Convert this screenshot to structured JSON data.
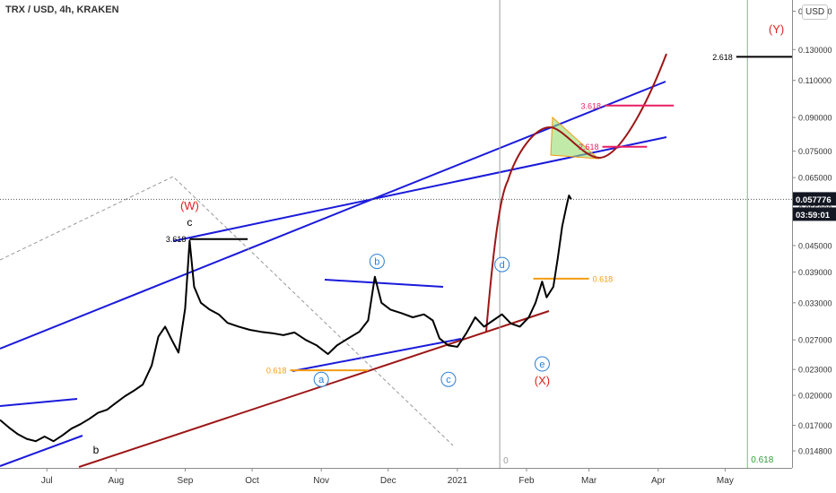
{
  "header": {
    "title": "TRX / USD, 4h, KRAKEN",
    "currency_button": "USD"
  },
  "colors": {
    "channel": "#1a1adb",
    "support": "#9c1616",
    "projection": "#9c1616",
    "wave_red": "#e02020",
    "fib_orange": "#f39c12",
    "fib_pink": "#e91e63",
    "fib_green": "#2e9e3a",
    "circle_label": "#2a7fd4",
    "price_tag": "#131722"
  },
  "chart_data": {
    "type": "line",
    "title": "TRX / USD, 4h, KRAKEN",
    "xlabel": "",
    "ylabel": "",
    "xlim": [
      "2020-06-10",
      "2021-05-31"
    ],
    "ylim": [
      0.0135,
      0.17
    ],
    "log_scale": true,
    "x_tick_labels": [
      {
        "date": "2020-07-01",
        "label": "Jul"
      },
      {
        "date": "2020-08-01",
        "label": "Aug"
      },
      {
        "date": "2020-09-01",
        "label": "Sep"
      },
      {
        "date": "2020-10-01",
        "label": "Oct"
      },
      {
        "date": "2020-11-01",
        "label": "Nov"
      },
      {
        "date": "2020-12-01",
        "label": "Dec"
      },
      {
        "date": "2021-01-01",
        "label": "2021"
      },
      {
        "date": "2021-02-01",
        "label": "Feb"
      },
      {
        "date": "2021-03-01",
        "label": "Mar"
      },
      {
        "date": "2021-04-01",
        "label": "Apr"
      },
      {
        "date": "2021-05-01",
        "label": "May"
      }
    ],
    "y_tick_labels": [
      "0.014800",
      "0.017000",
      "0.020000",
      "0.023000",
      "0.027000",
      "0.033000",
      "0.039000",
      "0.045000",
      "0.055000",
      "0.065000",
      "0.075000",
      "0.090000",
      "0.110000",
      "0.130000",
      "0.160000"
    ],
    "last_price": "0.057776",
    "countdown": "03:59:01",
    "series": [
      {
        "values": [
          [
            "2020-06-10",
            0.0175
          ],
          [
            "2020-06-14",
            0.0168
          ],
          [
            "2020-06-18",
            0.0162
          ],
          [
            "2020-06-22",
            0.0158
          ],
          [
            "2020-06-26",
            0.0156
          ],
          [
            "2020-06-30",
            0.016
          ],
          [
            "2020-07-04",
            0.0156
          ],
          [
            "2020-07-08",
            0.0161
          ],
          [
            "2020-07-12",
            0.0167
          ],
          [
            "2020-07-16",
            0.0171
          ],
          [
            "2020-07-20",
            0.0176
          ],
          [
            "2020-07-24",
            0.0182
          ],
          [
            "2020-07-28",
            0.0185
          ],
          [
            "2020-08-01",
            0.0192
          ],
          [
            "2020-08-05",
            0.0199
          ],
          [
            "2020-08-09",
            0.0205
          ],
          [
            "2020-08-13",
            0.0212
          ],
          [
            "2020-08-17",
            0.0235
          ],
          [
            "2020-08-20",
            0.0275
          ],
          [
            "2020-08-23",
            0.029
          ],
          [
            "2020-08-26",
            0.027
          ],
          [
            "2020-08-29",
            0.0252
          ],
          [
            "2020-09-01",
            0.032
          ],
          [
            "2020-09-03",
            0.0462
          ],
          [
            "2020-09-05",
            0.036
          ],
          [
            "2020-09-08",
            0.033
          ],
          [
            "2020-09-12",
            0.0318
          ],
          [
            "2020-09-16",
            0.031
          ],
          [
            "2020-09-20",
            0.0296
          ],
          [
            "2020-09-25",
            0.029
          ],
          [
            "2020-09-30",
            0.0285
          ],
          [
            "2020-10-05",
            0.0282
          ],
          [
            "2020-10-10",
            0.028
          ],
          [
            "2020-10-15",
            0.0277
          ],
          [
            "2020-10-20",
            0.0281
          ],
          [
            "2020-10-25",
            0.027
          ],
          [
            "2020-10-30",
            0.0262
          ],
          [
            "2020-11-04",
            0.025
          ],
          [
            "2020-11-08",
            0.0262
          ],
          [
            "2020-11-13",
            0.0272
          ],
          [
            "2020-11-18",
            0.0282
          ],
          [
            "2020-11-22",
            0.03
          ],
          [
            "2020-11-25",
            0.038
          ],
          [
            "2020-11-28",
            0.033
          ],
          [
            "2020-12-02",
            0.0318
          ],
          [
            "2020-12-07",
            0.0312
          ],
          [
            "2020-12-12",
            0.0305
          ],
          [
            "2020-12-17",
            0.031
          ],
          [
            "2020-12-21",
            0.03
          ],
          [
            "2020-12-24",
            0.0272
          ],
          [
            "2020-12-28",
            0.0262
          ],
          [
            "2021-01-01",
            0.026
          ],
          [
            "2021-01-05",
            0.028
          ],
          [
            "2021-01-09",
            0.0305
          ],
          [
            "2021-01-13",
            0.029
          ],
          [
            "2021-01-17",
            0.03
          ],
          [
            "2021-01-21",
            0.031
          ],
          [
            "2021-01-25",
            0.0295
          ],
          [
            "2021-01-29",
            0.029
          ],
          [
            "2021-02-02",
            0.0305
          ],
          [
            "2021-02-05",
            0.033
          ],
          [
            "2021-02-08",
            0.037
          ],
          [
            "2021-02-10",
            0.034
          ],
          [
            "2021-02-13",
            0.036
          ],
          [
            "2021-02-15",
            0.042
          ],
          [
            "2021-02-17",
            0.05
          ],
          [
            "2021-02-19",
            0.056
          ],
          [
            "2021-02-20",
            0.059
          ],
          [
            "2021-02-21",
            0.0578
          ]
        ]
      }
    ],
    "annotations": {
      "waves_red": [
        {
          "label": "(W)",
          "date": "2020-09-03",
          "price": 0.0546
        },
        {
          "label": "(X)",
          "date": "2021-02-08",
          "price": 0.0212
        },
        {
          "label": "(Y)",
          "date": "2021-05-24",
          "price": 0.142
        }
      ],
      "waves_black": [
        {
          "label": "c",
          "date": "2020-09-03",
          "price": 0.05
        },
        {
          "label": "b",
          "date": "2020-07-23",
          "price": 0.0146
        }
      ],
      "waves_circled": [
        {
          "label": "a",
          "date": "2020-11-01",
          "price": 0.0218
        },
        {
          "label": "b",
          "date": "2020-11-26",
          "price": 0.0413
        },
        {
          "label": "c",
          "date": "2020-12-28",
          "price": 0.0218
        },
        {
          "label": "d",
          "date": "2021-01-21",
          "price": 0.0406
        },
        {
          "label": "e",
          "date": "2021-02-08",
          "price": 0.0237
        }
      ],
      "fib_levels": [
        {
          "label": "3.618",
          "color": "black",
          "price": 0.0466,
          "from": "2020-09-03",
          "to": "2020-09-29",
          "label_side": "left"
        },
        {
          "label": "2.618",
          "color": "black",
          "price": 0.125,
          "from": "2021-05-06",
          "to": "2021-06-01",
          "label_side": "left"
        },
        {
          "label": "3.618",
          "color": "pink",
          "price": 0.096,
          "from": "2021-03-08",
          "to": "2021-04-08",
          "label_side": "left"
        },
        {
          "label": "2.618",
          "color": "pink",
          "price": 0.0768,
          "from": "2021-03-07",
          "to": "2021-03-27",
          "label_side": "left"
        },
        {
          "label": "0.618",
          "color": "orange",
          "price": 0.0376,
          "from": "2021-02-04",
          "to": "2021-03-01",
          "label_side": "right"
        },
        {
          "label": "0.618",
          "color": "orange",
          "price": 0.0229,
          "from": "2020-10-18",
          "to": "2020-11-22",
          "label_side": "left"
        }
      ],
      "vertical_fib": {
        "label": "0.618",
        "date": "2021-05-11"
      },
      "vertical_marker": {
        "label": "0",
        "date": "2021-01-20"
      }
    }
  }
}
